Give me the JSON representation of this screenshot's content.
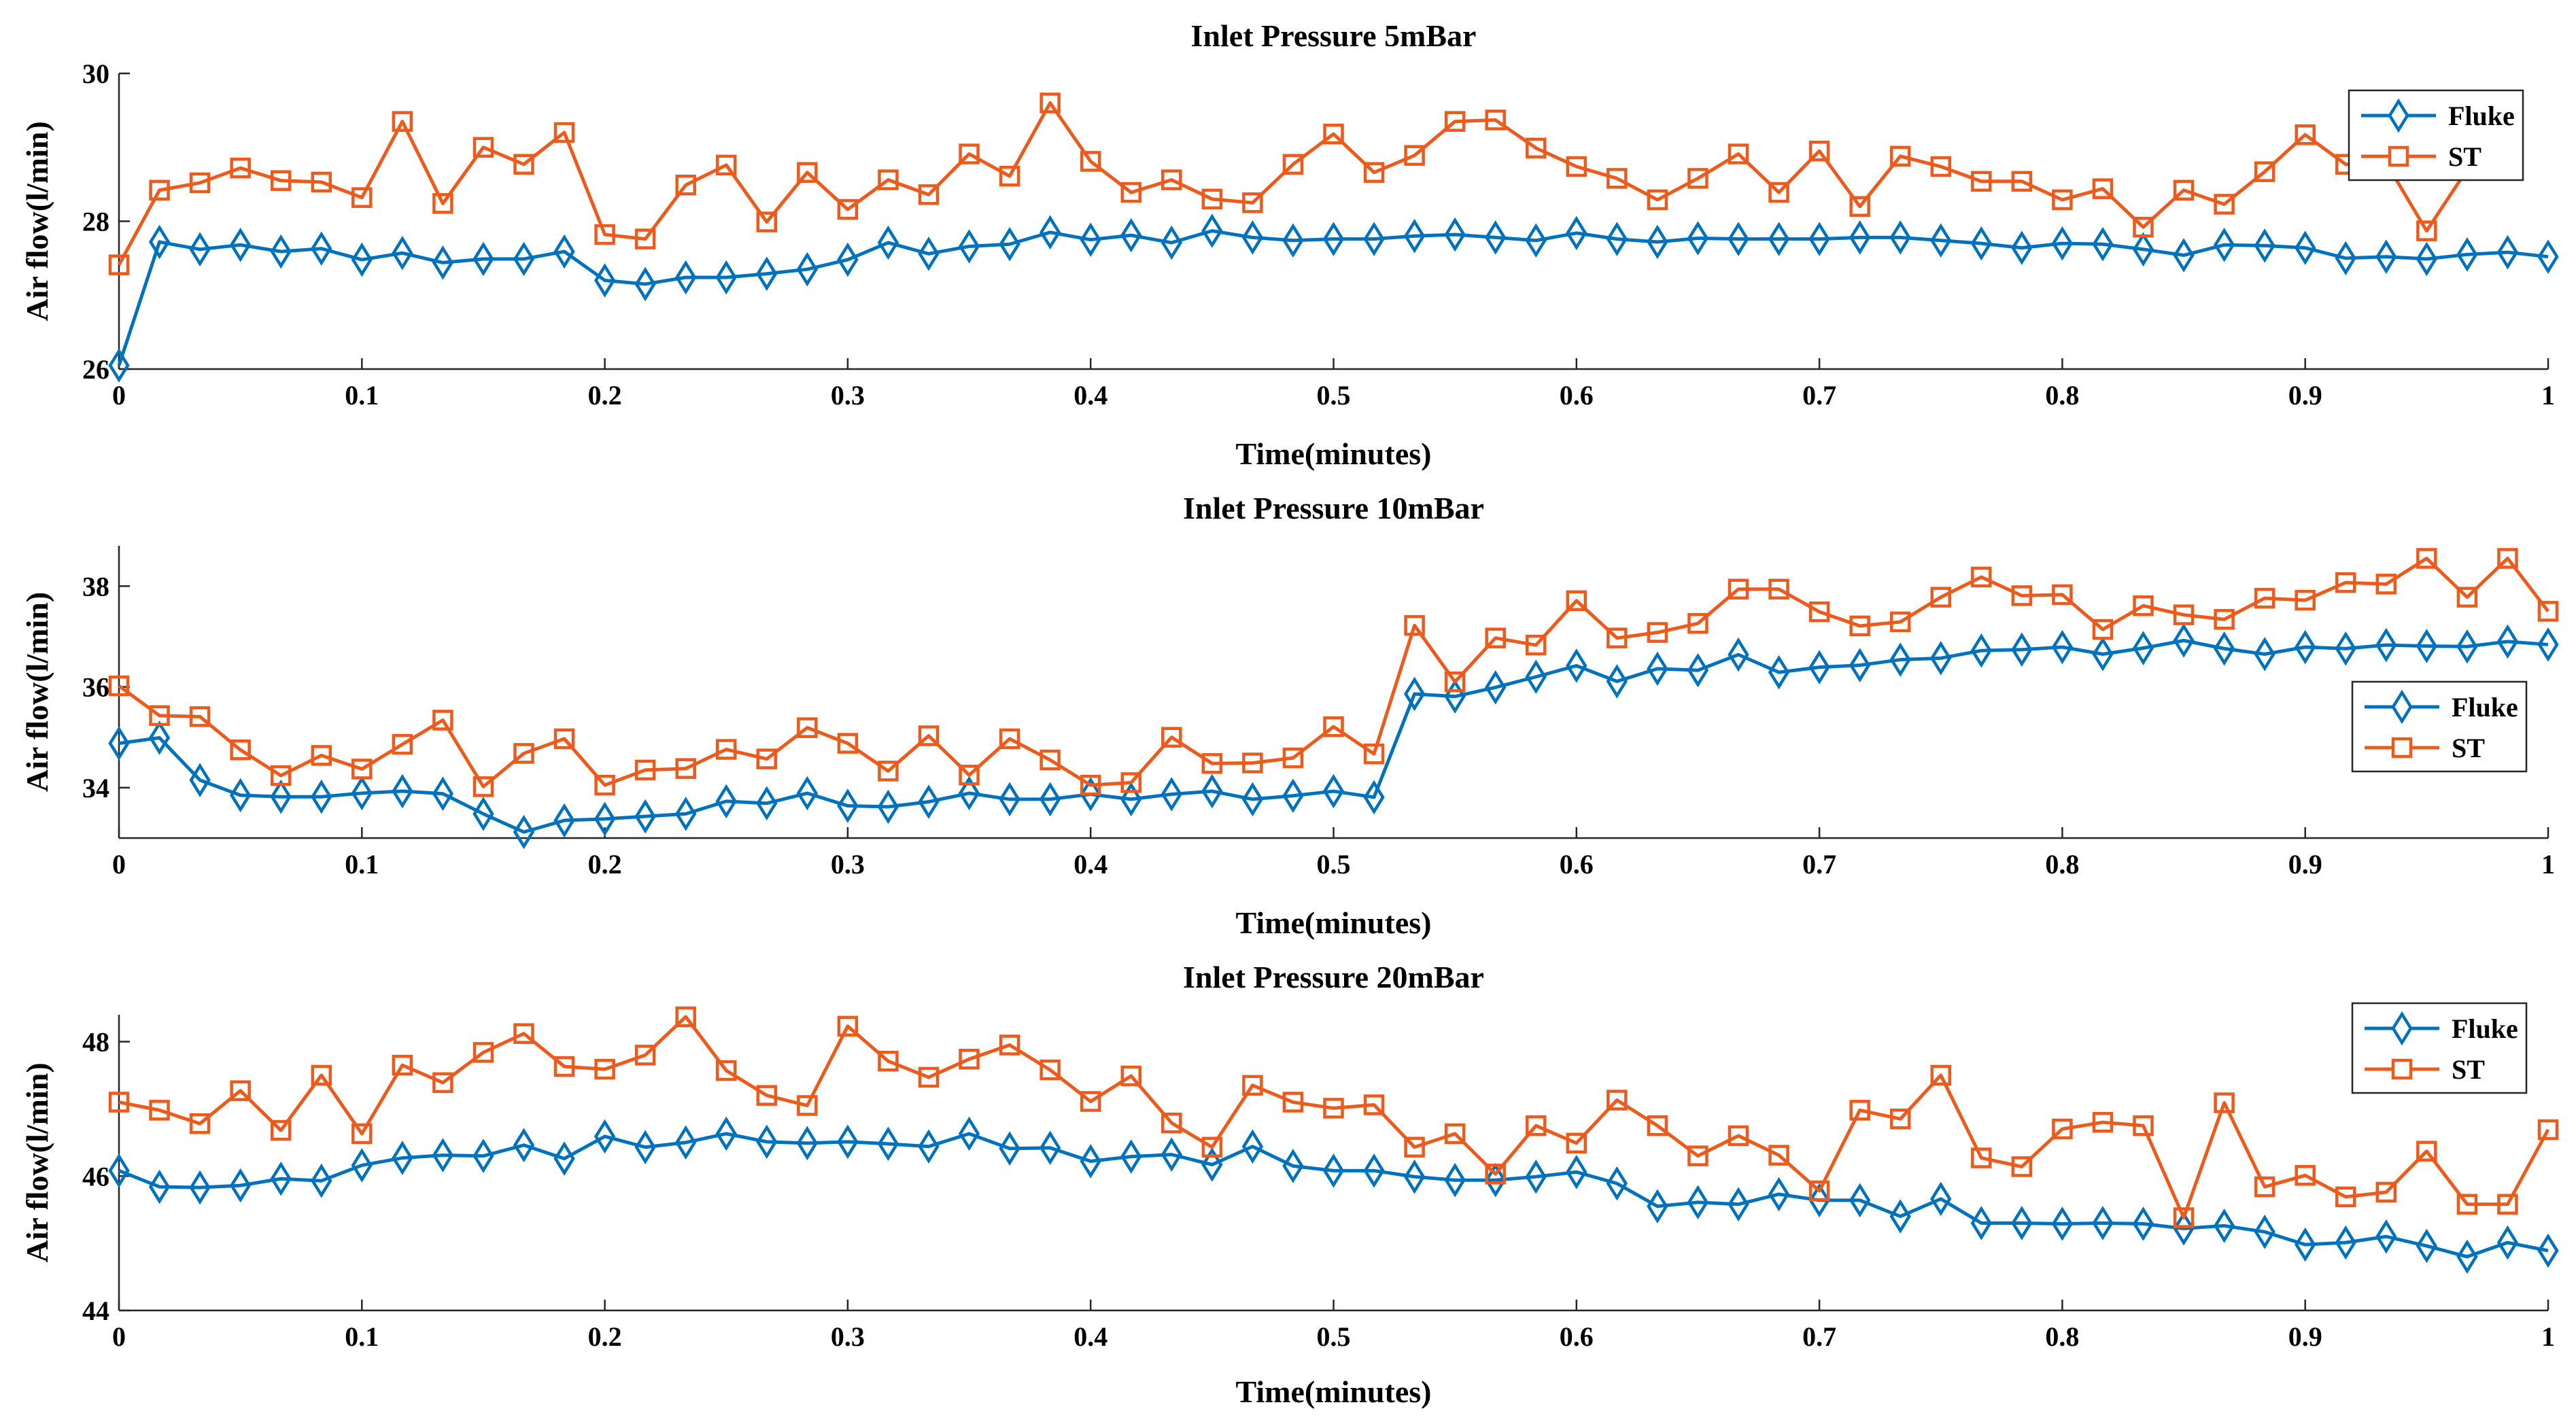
{
  "colors": {
    "fluke": "#0072BD",
    "st": "#EC5A1C"
  },
  "chart_data": [
    {
      "type": "line",
      "title": "Inlet Pressure 5mBar",
      "xlabel": "Time(minutes)",
      "ylabel": "Air flow(l/min)",
      "xlim": [
        0,
        1
      ],
      "ylim": [
        26,
        30
      ],
      "xticks": [
        0,
        0.1,
        0.2,
        0.3,
        0.4,
        0.5,
        0.6,
        0.7,
        0.8,
        0.9,
        1
      ],
      "xtick_labels": [
        "0",
        "0.1",
        "0.2",
        "0.3",
        "0.4",
        "0.5",
        "0.6",
        "0.7",
        "0.8",
        "0.9",
        "1"
      ],
      "yticks": [
        26,
        28,
        30
      ],
      "ytick_labels": [
        "26",
        "28",
        "30"
      ],
      "legend_position": "top-right",
      "series": [
        {
          "name": "Fluke",
          "marker": "diamond",
          "values": [
            26.05,
            27.72,
            27.62,
            27.68,
            27.59,
            27.63,
            27.48,
            27.57,
            27.44,
            27.49,
            27.49,
            27.59,
            27.2,
            27.15,
            27.24,
            27.24,
            27.29,
            27.35,
            27.48,
            27.71,
            27.56,
            27.66,
            27.69,
            27.85,
            27.75,
            27.81,
            27.71,
            27.87,
            27.78,
            27.74,
            27.76,
            27.76,
            27.8,
            27.82,
            27.78,
            27.74,
            27.84,
            27.76,
            27.72,
            27.77,
            27.76,
            27.76,
            27.76,
            27.78,
            27.78,
            27.74,
            27.7,
            27.64,
            27.7,
            27.69,
            27.62,
            27.54,
            27.68,
            27.67,
            27.64,
            27.5,
            27.52,
            27.49,
            27.55,
            27.58,
            27.52
          ]
        },
        {
          "name": "ST",
          "marker": "square",
          "values": [
            27.41,
            28.42,
            28.52,
            28.72,
            28.55,
            28.53,
            28.32,
            29.35,
            28.24,
            29.0,
            28.77,
            29.2,
            27.82,
            27.76,
            28.49,
            28.76,
            27.99,
            28.66,
            28.16,
            28.56,
            28.36,
            28.91,
            28.61,
            29.6,
            28.81,
            28.39,
            28.56,
            28.3,
            28.25,
            28.77,
            29.18,
            28.66,
            28.89,
            29.35,
            29.37,
            28.99,
            28.74,
            28.58,
            28.29,
            28.58,
            28.91,
            28.39,
            28.95,
            28.2,
            28.88,
            28.74,
            28.54,
            28.54,
            28.29,
            28.44,
            27.92,
            28.42,
            28.23,
            28.67,
            29.17,
            28.77,
            28.79,
            27.87,
            28.7
          ]
        }
      ]
    },
    {
      "type": "line",
      "title": "Inlet Pressure 10mBar",
      "xlabel": "Time(minutes)",
      "ylabel": "Air flow(l/min)",
      "xlim": [
        0,
        1
      ],
      "ylim": [
        33,
        38.8
      ],
      "xticks": [
        0,
        0.1,
        0.2,
        0.3,
        0.4,
        0.5,
        0.6,
        0.7,
        0.8,
        0.9,
        1
      ],
      "xtick_labels": [
        "0",
        "0.1",
        "0.2",
        "0.3",
        "0.4",
        "0.5",
        "0.6",
        "0.7",
        "0.8",
        "0.9",
        "1"
      ],
      "yticks": [
        34,
        36,
        38
      ],
      "ytick_labels": [
        "34",
        "36",
        "38"
      ],
      "legend_position": "right",
      "series": [
        {
          "name": "Fluke",
          "marker": "diamond",
          "values": [
            34.88,
            34.99,
            34.15,
            33.85,
            33.82,
            33.82,
            33.89,
            33.93,
            33.88,
            33.48,
            33.12,
            33.35,
            33.38,
            33.43,
            33.48,
            33.73,
            33.69,
            33.89,
            33.64,
            33.62,
            33.72,
            33.89,
            33.77,
            33.77,
            33.87,
            33.77,
            33.87,
            33.93,
            33.77,
            33.84,
            33.93,
            33.81,
            35.86,
            35.81,
            35.99,
            36.2,
            36.42,
            36.11,
            36.36,
            36.33,
            36.64,
            36.29,
            36.39,
            36.43,
            36.54,
            36.57,
            36.72,
            36.74,
            36.79,
            36.65,
            36.77,
            36.92,
            36.76,
            36.65,
            36.79,
            36.76,
            36.83,
            36.81,
            36.8,
            36.9,
            36.84
          ]
        },
        {
          "name": "ST",
          "marker": "square",
          "values": [
            36.02,
            35.43,
            35.41,
            34.75,
            34.24,
            34.64,
            34.37,
            34.86,
            35.34,
            34.02,
            34.68,
            34.97,
            34.05,
            34.35,
            34.38,
            34.76,
            34.57,
            35.19,
            34.88,
            34.33,
            35.03,
            34.25,
            34.97,
            34.55,
            34.05,
            34.1,
            35.0,
            34.48,
            34.49,
            34.59,
            35.21,
            34.67,
            37.22,
            36.1,
            36.97,
            36.83,
            37.71,
            36.97,
            37.08,
            37.26,
            37.94,
            37.94,
            37.49,
            37.21,
            37.29,
            37.78,
            38.18,
            37.81,
            37.83,
            37.14,
            37.61,
            37.43,
            37.34,
            37.76,
            37.72,
            38.07,
            38.04,
            38.55,
            37.78,
            38.55,
            37.5
          ]
        }
      ]
    },
    {
      "type": "line",
      "title": "Inlet Pressure 20mBar",
      "xlabel": "Time(minutes)",
      "ylabel": "Air flow(l/min)",
      "xlim": [
        0,
        1
      ],
      "ylim": [
        44,
        48.4
      ],
      "xticks": [
        0,
        0.1,
        0.2,
        0.3,
        0.4,
        0.5,
        0.6,
        0.7,
        0.8,
        0.9,
        1
      ],
      "xtick_labels": [
        "0",
        "0.1",
        "0.2",
        "0.3",
        "0.4",
        "0.5",
        "0.6",
        "0.7",
        "0.8",
        "0.9",
        "1"
      ],
      "yticks": [
        44,
        46,
        48
      ],
      "ytick_labels": [
        "44",
        "46",
        "48"
      ],
      "legend_position": "top-right",
      "series": [
        {
          "name": "Fluke",
          "marker": "diamond",
          "values": [
            46.08,
            45.84,
            45.83,
            45.86,
            45.96,
            45.93,
            46.16,
            46.27,
            46.31,
            46.3,
            46.46,
            46.26,
            46.59,
            46.43,
            46.5,
            46.63,
            46.51,
            46.49,
            46.51,
            46.48,
            46.44,
            46.63,
            46.41,
            46.42,
            46.22,
            46.29,
            46.32,
            46.17,
            46.44,
            46.15,
            46.08,
            46.08,
            45.99,
            45.94,
            45.94,
            45.99,
            46.06,
            45.89,
            45.55,
            45.61,
            45.58,
            45.73,
            45.64,
            45.64,
            45.4,
            45.66,
            45.3,
            45.3,
            45.29,
            45.3,
            45.29,
            45.22,
            45.26,
            45.17,
            44.98,
            45.01,
            45.1,
            44.96,
            44.8,
            45.01,
            44.89
          ]
        },
        {
          "name": "ST",
          "marker": "square",
          "values": [
            47.1,
            46.98,
            46.78,
            47.27,
            46.68,
            47.5,
            46.63,
            47.65,
            47.39,
            47.84,
            48.12,
            47.63,
            47.59,
            47.8,
            48.37,
            47.57,
            47.2,
            47.05,
            48.23,
            47.71,
            47.47,
            47.74,
            47.95,
            47.58,
            47.11,
            47.49,
            46.79,
            46.43,
            47.35,
            47.1,
            47.01,
            47.06,
            46.43,
            46.63,
            46.03,
            46.75,
            46.49,
            47.13,
            46.75,
            46.3,
            46.6,
            46.31,
            45.78,
            46.98,
            46.85,
            47.5,
            46.27,
            46.14,
            46.7,
            46.8,
            46.75,
            45.38,
            47.09,
            45.84,
            46.01,
            45.69,
            45.76,
            46.37,
            45.58,
            45.58,
            46.69
          ]
        }
      ]
    }
  ]
}
